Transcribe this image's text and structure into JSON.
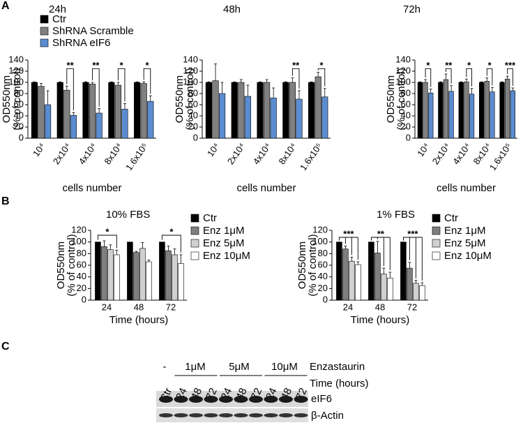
{
  "panels": [
    "A",
    "B",
    "C"
  ],
  "chart_data": [
    {
      "type": "bar",
      "title": "24h",
      "ylabel": [
        "OD550nm",
        "(% of control)"
      ],
      "xlabel": "cells number",
      "categories": [
        "10⁴",
        "2x10⁴",
        "4x10⁴",
        "8x10⁴",
        "1.6x10⁵"
      ],
      "series": [
        {
          "name": "Ctr",
          "color": "#000000",
          "values": [
            100,
            100,
            100,
            100,
            100
          ],
          "errors": [
            1,
            1,
            1,
            1,
            1
          ]
        },
        {
          "name": "ShRNA Scramble",
          "color": "#808080",
          "values": [
            93,
            86,
            97,
            95,
            98
          ],
          "errors": [
            5,
            7,
            3,
            5,
            3
          ]
        },
        {
          "name": "ShRNA eIF6",
          "color": "#5b8ccf",
          "values": [
            60,
            41,
            45,
            52,
            66
          ],
          "errors": [
            25,
            5,
            8,
            10,
            10
          ]
        }
      ],
      "significance": [
        null,
        "**",
        "**",
        "*",
        "*"
      ],
      "ylim": [
        0,
        140
      ],
      "yticks": [
        0,
        20,
        40,
        60,
        80,
        100,
        120,
        140
      ],
      "legend": "upper left"
    },
    {
      "type": "bar",
      "title": "48h",
      "ylabel": [
        "OD550nm",
        "(% of control)"
      ],
      "xlabel": "cells number",
      "categories": [
        "10⁴",
        "2x10⁴",
        "4x10⁴",
        "8x10⁴",
        "1.6x10⁵"
      ],
      "series": [
        {
          "name": "Ctr",
          "color": "#000000",
          "values": [
            100,
            100,
            100,
            100,
            100
          ],
          "errors": [
            1,
            1,
            1,
            1,
            1
          ]
        },
        {
          "name": "ShRNA Scramble",
          "color": "#808080",
          "values": [
            103,
            100,
            100,
            100,
            110
          ],
          "errors": [
            30,
            5,
            5,
            8,
            8
          ]
        },
        {
          "name": "ShRNA eIF6",
          "color": "#5b8ccf",
          "values": [
            80,
            75,
            72,
            70,
            74
          ],
          "errors": [
            20,
            20,
            18,
            15,
            15
          ]
        }
      ],
      "significance": [
        null,
        null,
        null,
        "**",
        "*"
      ],
      "ylim": [
        0,
        140
      ],
      "yticks": [
        0,
        20,
        40,
        60,
        80,
        100,
        120,
        140
      ]
    },
    {
      "type": "bar",
      "title": "72h",
      "ylabel": [
        "OD550nm",
        "(% of control)"
      ],
      "xlabel": "cells number",
      "categories": [
        "10⁴",
        "2x10⁴",
        "4x10⁴",
        "8x10⁴",
        "1.6x10⁵"
      ],
      "series": [
        {
          "name": "Ctr",
          "color": "#000000",
          "values": [
            100,
            100,
            100,
            100,
            100
          ],
          "errors": [
            1,
            1,
            1,
            1,
            1
          ]
        },
        {
          "name": "ShRNA Scramble",
          "color": "#808080",
          "values": [
            100,
            105,
            101,
            102,
            106
          ],
          "errors": [
            5,
            10,
            5,
            6,
            5
          ]
        },
        {
          "name": "ShRNA eIF6",
          "color": "#5b8ccf",
          "values": [
            81,
            84,
            79,
            83,
            85
          ],
          "errors": [
            7,
            10,
            10,
            8,
            5
          ]
        }
      ],
      "significance": [
        "*",
        "**",
        "*",
        "*",
        "***"
      ],
      "ylim": [
        0,
        140
      ],
      "yticks": [
        0,
        20,
        40,
        60,
        80,
        100,
        120,
        140
      ]
    },
    {
      "type": "bar",
      "title": "10% FBS",
      "ylabel": [
        "OD550nm",
        "(% of control)"
      ],
      "xlabel": "Time (hours)",
      "categories": [
        "24",
        "48",
        "72"
      ],
      "series": [
        {
          "name": "Ctr",
          "color": "#000000",
          "values": [
            100,
            100,
            100
          ]
        },
        {
          "name": "Enz 1μM",
          "color": "#7f7f7f",
          "values": [
            92,
            82,
            85
          ],
          "errors": [
            10,
            2,
            8
          ]
        },
        {
          "name": "Enz 5μM",
          "color": "#d0d0d0",
          "values": [
            87,
            89,
            78
          ],
          "errors": [
            8,
            10,
            10
          ]
        },
        {
          "name": "Enz 10μM",
          "color": "#ffffff",
          "values": [
            78,
            66,
            63
          ],
          "errors": [
            8,
            3,
            15
          ]
        }
      ],
      "significance": [
        "*",
        null,
        "*"
      ],
      "ylim": [
        0,
        120
      ],
      "yticks": [
        0,
        20,
        40,
        60,
        80,
        100,
        120
      ],
      "legend": "right"
    },
    {
      "type": "bar",
      "title": "1% FBS",
      "ylabel": [
        "OD550nm",
        "(% of control)"
      ],
      "xlabel": "Time (hours)",
      "categories": [
        "24",
        "48",
        "72"
      ],
      "series": [
        {
          "name": "Ctr",
          "color": "#000000",
          "values": [
            100,
            100,
            100
          ]
        },
        {
          "name": "Enz 1μM",
          "color": "#7f7f7f",
          "values": [
            88,
            81,
            55
          ],
          "errors": [
            5,
            20,
            10
          ]
        },
        {
          "name": "Enz 5μM",
          "color": "#d0d0d0",
          "values": [
            67,
            45,
            29
          ],
          "errors": [
            7,
            10,
            5
          ]
        },
        {
          "name": "Enz 10μM",
          "color": "#ffffff",
          "values": [
            61,
            38,
            25
          ],
          "errors": [
            5,
            10,
            5
          ]
        }
      ],
      "significance": [
        "***",
        "**",
        "***"
      ],
      "ylim": [
        0,
        120
      ],
      "yticks": [
        0,
        20,
        40,
        60,
        80,
        100,
        120
      ],
      "legend": "right"
    }
  ],
  "blot": {
    "doses": [
      "-",
      "1μM",
      "5μM",
      "10μM"
    ],
    "treatment_label": "Enzastaurin",
    "lanes": [
      "Ctr",
      "24",
      "48",
      "72",
      "24",
      "48",
      "72",
      "24",
      "48",
      "72"
    ],
    "time_label": "Time (hours)",
    "bands": [
      "eIF6",
      "β-Actin"
    ]
  }
}
